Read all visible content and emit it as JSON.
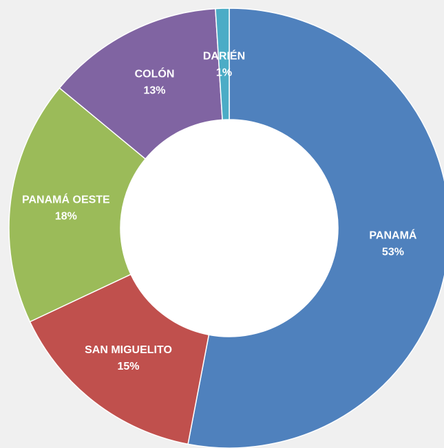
{
  "chart_data": {
    "type": "donut",
    "categories": [
      "PANAMÁ",
      "SAN MIGUELITO",
      "PANAMÁ OESTE",
      "COLÓN",
      "DARIÉN"
    ],
    "values": [
      53,
      15,
      18,
      13,
      1
    ],
    "value_labels": [
      "53%",
      "15%",
      "18%",
      "13%",
      "1%"
    ],
    "colors": [
      "#4f81bd",
      "#c0504d",
      "#9bbb59",
      "#8064a2",
      "#4bacc6"
    ]
  }
}
